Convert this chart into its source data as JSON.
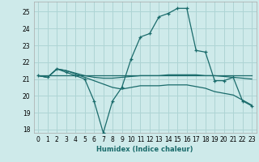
{
  "xlabel": "Humidex (Indice chaleur)",
  "ylabel": "",
  "background_color": "#ceeaea",
  "grid_color": "#aed4d4",
  "line_color": "#1a6b6b",
  "xlim": [
    -0.5,
    23.5
  ],
  "ylim": [
    17.8,
    25.6
  ],
  "yticks": [
    18,
    19,
    20,
    21,
    22,
    23,
    24,
    25
  ],
  "xticks": [
    0,
    1,
    2,
    3,
    4,
    5,
    6,
    7,
    8,
    9,
    10,
    11,
    12,
    13,
    14,
    15,
    16,
    17,
    18,
    19,
    20,
    21,
    22,
    23
  ],
  "lines": [
    {
      "x": [
        0,
        1,
        2,
        3,
        4,
        5,
        6,
        7,
        8,
        9,
        10,
        11,
        12,
        13,
        14,
        15,
        16,
        17,
        18,
        19,
        20,
        21,
        22,
        23
      ],
      "y": [
        21.2,
        21.1,
        21.6,
        21.4,
        21.2,
        21.0,
        19.7,
        17.8,
        19.7,
        20.5,
        22.2,
        23.5,
        23.7,
        24.7,
        24.9,
        25.2,
        25.2,
        22.7,
        22.6,
        20.9,
        20.9,
        21.1,
        19.7,
        19.4
      ],
      "markers": true
    },
    {
      "x": [
        0,
        1,
        2,
        3,
        4,
        5,
        6,
        7,
        8,
        9,
        10,
        11,
        12,
        13,
        14,
        15,
        16,
        17,
        18,
        19,
        20,
        21,
        22,
        23
      ],
      "y": [
        21.2,
        21.1,
        21.6,
        21.5,
        21.35,
        21.2,
        21.1,
        21.05,
        21.05,
        21.1,
        21.15,
        21.2,
        21.2,
        21.2,
        21.25,
        21.25,
        21.25,
        21.25,
        21.2,
        21.2,
        21.15,
        21.1,
        21.05,
        21.0
      ],
      "markers": false
    },
    {
      "x": [
        0,
        1,
        2,
        3,
        4,
        5,
        6,
        7,
        8,
        9,
        10,
        11,
        12,
        13,
        14,
        15,
        16,
        17,
        18,
        19,
        20,
        21,
        22,
        23
      ],
      "y": [
        21.2,
        21.1,
        21.6,
        21.5,
        21.3,
        21.1,
        20.9,
        20.7,
        20.5,
        20.4,
        20.5,
        20.6,
        20.6,
        20.6,
        20.65,
        20.65,
        20.65,
        20.55,
        20.45,
        20.25,
        20.15,
        20.05,
        19.75,
        19.45
      ],
      "markers": false
    },
    {
      "x": [
        0,
        23
      ],
      "y": [
        21.2,
        21.2
      ],
      "markers": false
    }
  ]
}
